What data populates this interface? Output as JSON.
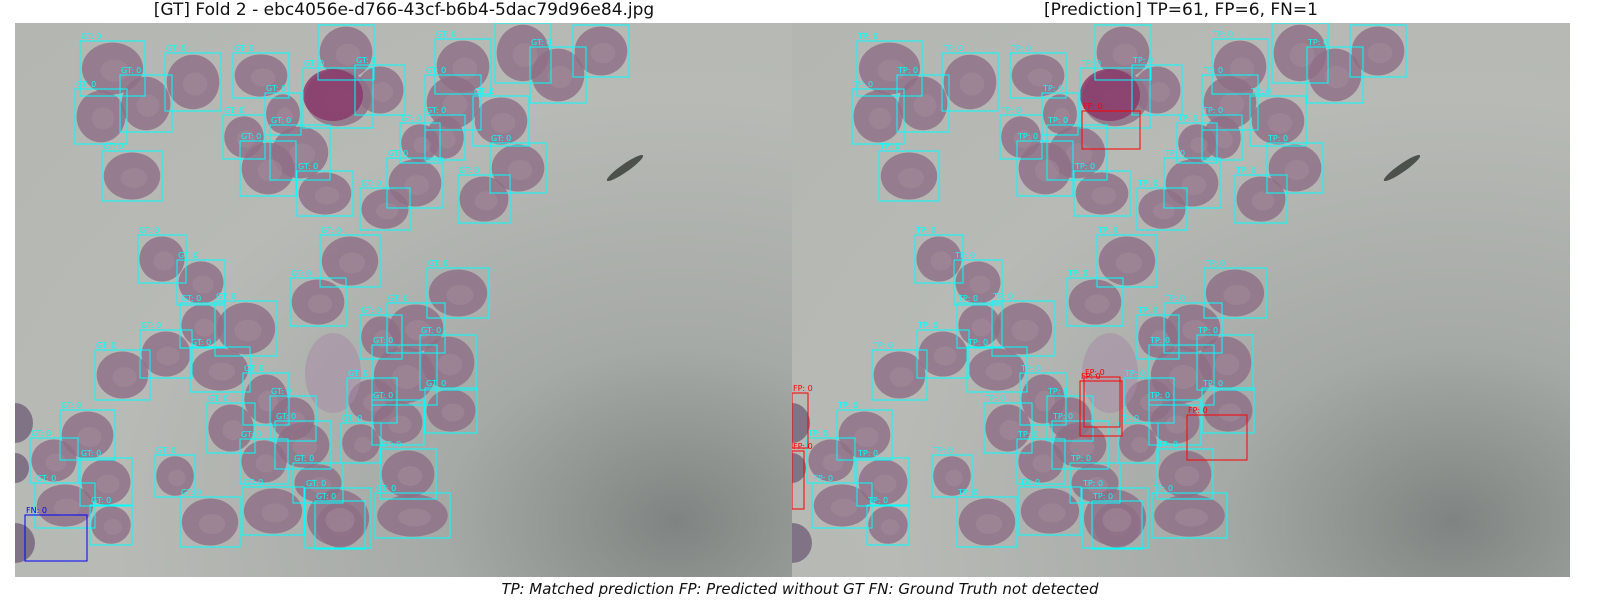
{
  "left_panel": {
    "title": "[GT] Fold 2 - ebc4056e-d766-43cf-b6b4-5dac79d96e84.jpg",
    "box_label_gt": "GT: 0",
    "box_label_fn": "FN: 0"
  },
  "right_panel": {
    "title": "[Prediction] TP=61, FP=6, FN=1",
    "box_label_tp": "TP: 0",
    "box_label_fp": "FP: 0"
  },
  "legend": "TP: Matched prediction   FP: Predicted without GT   FN: Ground Truth not detected",
  "colors": {
    "gt": "#00ffff",
    "tp": "#00ffff",
    "fp": "#ff0000",
    "fn": "#0000ff",
    "cell": "#8d6f86",
    "cell_dark": "#6a5670",
    "parasite": "#8a3a6a"
  }
}
